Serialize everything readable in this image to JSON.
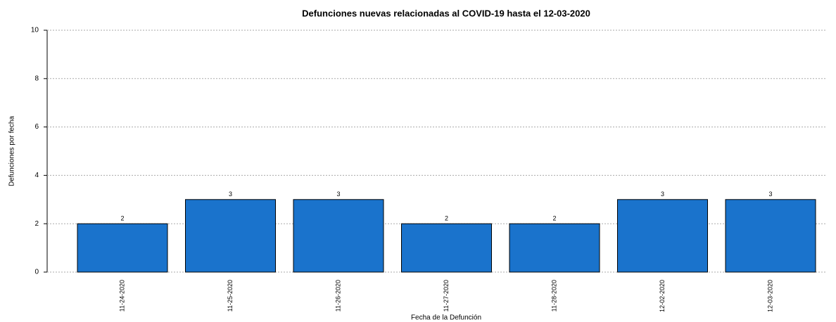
{
  "chart_data": {
    "type": "bar",
    "title": "Defunciones nuevas relacionadas al COVID-19 hasta el 12-03-2020",
    "x_label": "Fecha de la Defunción",
    "y_label": "Defunciones por fecha",
    "categories": [
      "11-24-2020",
      "11-25-2020",
      "11-26-2020",
      "11-27-2020",
      "11-28-2020",
      "12-02-2020",
      "12-03-2020"
    ],
    "values": [
      2,
      3,
      3,
      2,
      2,
      3,
      3
    ],
    "color": "#1a73cc",
    "ylim": [
      0,
      10
    ],
    "yticks": [
      0,
      2,
      4,
      6,
      8,
      10
    ],
    "grid": true
  }
}
